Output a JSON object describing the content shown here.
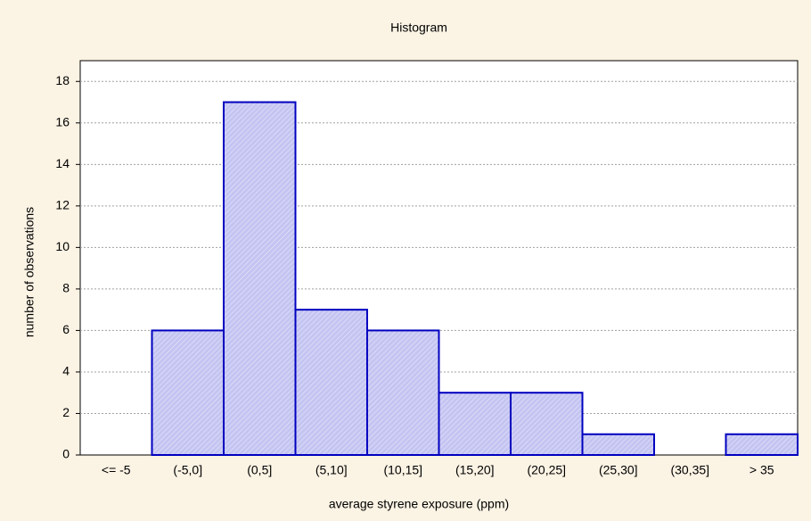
{
  "chart_data": {
    "type": "bar",
    "title": "Histogram",
    "x_label": "average styrene exposure (ppm)",
    "y_label": "number of observations",
    "categories": [
      "<= -5",
      "(-5,0]",
      "(0,5]",
      "(5,10]",
      "(10,15]",
      "(15,20]",
      "(20,25]",
      "(25,30]",
      "(30,35]",
      "> 35"
    ],
    "values": [
      0,
      6,
      17,
      7,
      6,
      3,
      3,
      1,
      0,
      1
    ],
    "color": "#c4c4f2",
    "edge_color": "#0000c0",
    "ylim": [
      0,
      19
    ],
    "yticks": [
      0,
      2,
      4,
      6,
      8,
      10,
      12,
      14,
      16,
      18
    ],
    "grid": true
  }
}
